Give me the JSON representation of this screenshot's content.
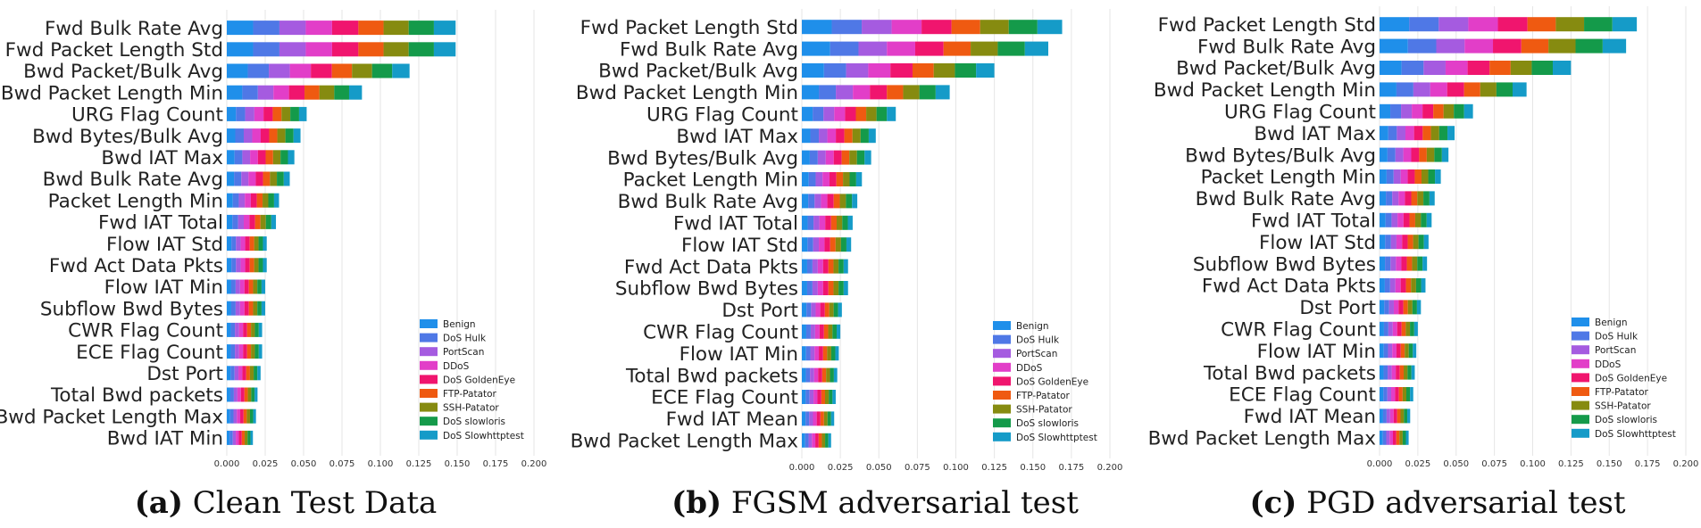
{
  "colors": {
    "Benign": "#1f8fea",
    "DoS Hulk": "#4f78e6",
    "PortScan": "#a55be0",
    "DDoS": "#e23ec8",
    "DoS GoldenEye": "#f0156e",
    "FTP-Patator": "#ef5a11",
    "SSH-Patator": "#868b10",
    "DoS slowloris": "#149a4a",
    "DoS Slowhttptest": "#159bc8"
  },
  "figure_captions": [
    {
      "letter": "(a)",
      "text": "Clean Test Data"
    },
    {
      "letter": "(b)",
      "text": "FGSM adversarial test"
    },
    {
      "letter": "(c)",
      "text": "PGD adversarial test"
    }
  ],
  "chart_data": [
    {
      "type": "bar",
      "orientation": "horizontal",
      "stacked": true,
      "title": "",
      "xlabel": "",
      "ylabel": "",
      "xlim": [
        0,
        0.2
      ],
      "xticks": [
        "0.000",
        "0.025",
        "0.050",
        "0.075",
        "0.100",
        "0.125",
        "0.150",
        "0.175",
        "0.200"
      ],
      "grid": true,
      "legend_position": "lower-right",
      "legend": [
        "Benign",
        "DoS Hulk",
        "PortScan",
        "DDoS",
        "DoS GoldenEye",
        "FTP-Patator",
        "SSH-Patator",
        "DoS slowloris",
        "DoS Slowhttptest"
      ],
      "categories": [
        "Fwd Bulk Rate Avg",
        "Fwd Packet Length Std",
        "Bwd Packet/Bulk Avg",
        "Bwd Packet Length Min",
        "URG Flag Count",
        "Bwd Bytes/Bulk Avg",
        "Bwd IAT Max",
        "Bwd Bulk Rate Avg",
        "Packet Length Min",
        "Fwd IAT Total",
        "Flow IAT Std",
        "Fwd Act Data Pkts",
        "Flow IAT Min",
        "Subflow Bwd Bytes",
        "CWR Flag Count",
        "ECE Flag Count",
        "Dst Port",
        "Total Bwd packets",
        "Bwd Packet Length Max",
        "Bwd IAT Min"
      ],
      "totals": [
        0.149,
        0.149,
        0.119,
        0.088,
        0.052,
        0.048,
        0.044,
        0.041,
        0.034,
        0.032,
        0.026,
        0.026,
        0.025,
        0.025,
        0.023,
        0.023,
        0.022,
        0.02,
        0.019,
        0.017
      ]
    },
    {
      "type": "bar",
      "orientation": "horizontal",
      "stacked": true,
      "title": "",
      "xlabel": "",
      "ylabel": "",
      "xlim": [
        0,
        0.2
      ],
      "xticks": [
        "0.000",
        "0.025",
        "0.050",
        "0.075",
        "0.100",
        "0.125",
        "0.150",
        "0.175",
        "0.200"
      ],
      "grid": true,
      "legend_position": "lower-right",
      "legend": [
        "Benign",
        "DoS Hulk",
        "PortScan",
        "DDoS",
        "DoS GoldenEye",
        "FTP-Patator",
        "SSH-Patator",
        "DoS slowloris",
        "DoS Slowhttptest"
      ],
      "categories": [
        "Fwd Packet Length Std",
        "Fwd Bulk Rate Avg",
        "Bwd Packet/Bulk Avg",
        "Bwd Packet Length Min",
        "URG Flag Count",
        "Bwd IAT Max",
        "Bwd Bytes/Bulk Avg",
        "Packet Length Min",
        "Bwd Bulk Rate Avg",
        "Fwd IAT Total",
        "Flow IAT Std",
        "Fwd Act Data Pkts",
        "Subflow Bwd Bytes",
        "Dst Port",
        "CWR Flag Count",
        "Flow IAT Min",
        "Total Bwd packets",
        "ECE Flag Count",
        "Fwd IAT Mean",
        "Bwd Packet Length Max"
      ],
      "totals": [
        0.169,
        0.16,
        0.125,
        0.096,
        0.061,
        0.048,
        0.045,
        0.039,
        0.036,
        0.033,
        0.032,
        0.03,
        0.03,
        0.026,
        0.025,
        0.024,
        0.023,
        0.022,
        0.021,
        0.019
      ]
    },
    {
      "type": "bar",
      "orientation": "horizontal",
      "stacked": true,
      "title": "",
      "xlabel": "",
      "ylabel": "",
      "xlim": [
        0,
        0.2
      ],
      "xticks": [
        "0.000",
        "0.025",
        "0.050",
        "0.075",
        "0.100",
        "0.125",
        "0.150",
        "0.175",
        "0.200"
      ],
      "grid": true,
      "legend_position": "lower-right",
      "legend": [
        "Benign",
        "DoS Hulk",
        "PortScan",
        "DDoS",
        "DoS GoldenEye",
        "FTP-Patator",
        "SSH-Patator",
        "DoS slowloris",
        "DoS Slowhttptest"
      ],
      "categories": [
        "Fwd Packet Length Std",
        "Fwd Bulk Rate Avg",
        "Bwd Packet/Bulk Avg",
        "Bwd Packet Length Min",
        "URG Flag Count",
        "Bwd IAT Max",
        "Bwd Bytes/Bulk Avg",
        "Packet Length Min",
        "Bwd Bulk Rate Avg",
        "Fwd IAT Total",
        "Flow IAT Std",
        "Subflow Bwd Bytes",
        "Fwd Act Data Pkts",
        "Dst Port",
        "CWR Flag Count",
        "Flow IAT Min",
        "Total Bwd packets",
        "ECE Flag Count",
        "Fwd IAT Mean",
        "Bwd Packet Length Max"
      ],
      "totals": [
        0.168,
        0.161,
        0.125,
        0.096,
        0.061,
        0.049,
        0.045,
        0.04,
        0.036,
        0.034,
        0.032,
        0.031,
        0.03,
        0.027,
        0.025,
        0.024,
        0.023,
        0.022,
        0.02,
        0.019
      ]
    }
  ]
}
